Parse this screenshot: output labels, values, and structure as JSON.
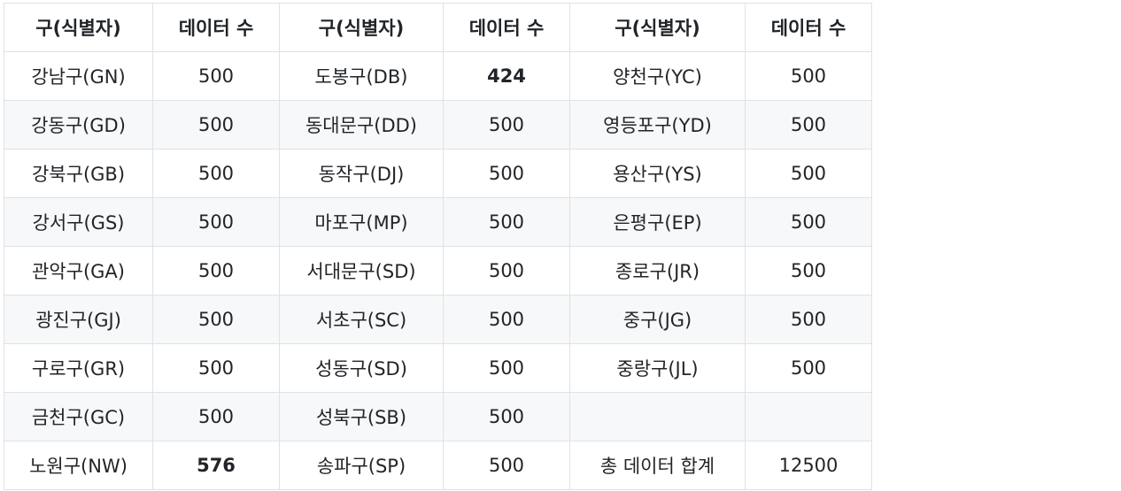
{
  "table": {
    "headers": [
      "구(식별자)",
      "데이터 수",
      "구(식별자)",
      "데이터 수",
      "구(식별자)",
      "데이터 수"
    ],
    "rows": [
      [
        "강남구(GN)",
        "500",
        "도봉구(DB)",
        "424",
        "양천구(YC)",
        "500"
      ],
      [
        "강동구(GD)",
        "500",
        "동대문구(DD)",
        "500",
        "영등포구(YD)",
        "500"
      ],
      [
        "강북구(GB)",
        "500",
        "동작구(DJ)",
        "500",
        "용산구(YS)",
        "500"
      ],
      [
        "강서구(GS)",
        "500",
        "마포구(MP)",
        "500",
        "은평구(EP)",
        "500"
      ],
      [
        "관악구(GA)",
        "500",
        "서대문구(SD)",
        "500",
        "종로구(JR)",
        "500"
      ],
      [
        "광진구(GJ)",
        "500",
        "서초구(SC)",
        "500",
        "중구(JG)",
        "500"
      ],
      [
        "구로구(GR)",
        "500",
        "성동구(SD)",
        "500",
        "중랑구(JL)",
        "500"
      ],
      [
        "금천구(GC)",
        "500",
        "성북구(SB)",
        "500",
        "",
        ""
      ],
      [
        "노원구(NW)",
        "576",
        "송파구(SP)",
        "500",
        "총 데이터 합계",
        "12500"
      ]
    ]
  }
}
